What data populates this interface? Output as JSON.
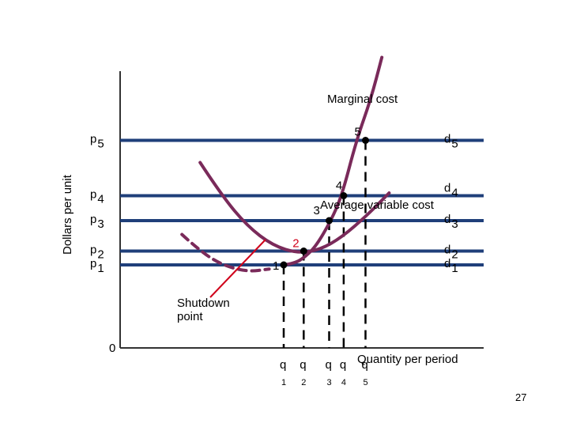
{
  "chart_data": {
    "type": "line",
    "ylabel": "Dollars per unit",
    "xlabel": "Quantity per period",
    "origin_label": "0",
    "xlim": [
      0,
      10
    ],
    "ylim": [
      0,
      10
    ],
    "price_lines": [
      {
        "label": "p",
        "sub": "5",
        "right_label": "d",
        "right_sub": "5",
        "y": 7.5
      },
      {
        "label": "p",
        "sub": "4",
        "right_label": "d",
        "right_sub": "4",
        "y": 5.5
      },
      {
        "label": "p",
        "sub": "3",
        "right_label": "d",
        "right_sub": "3",
        "y": 4.6
      },
      {
        "label": "p",
        "sub": "2",
        "right_label": "d",
        "right_sub": "2",
        "y": 3.5
      },
      {
        "label": "p",
        "sub": "1",
        "right_label": "d",
        "right_sub": "1",
        "y": 3.0
      }
    ],
    "series": [
      {
        "name": "Marginal cost",
        "color": "#7a2a5a",
        "x": [
          4.5,
          4.8,
          5.1,
          5.4,
          5.8,
          6.1,
          6.5,
          6.9,
          7.2
        ],
        "y": [
          3.0,
          3.05,
          3.3,
          3.7,
          4.6,
          5.5,
          7.5,
          9.0,
          10.5
        ]
      },
      {
        "name": "Average variable cost",
        "color": "#7a2a5a",
        "x": [
          2.2,
          2.8,
          3.5,
          4.2,
          4.9,
          5.5,
          6.1,
          6.8,
          7.4
        ],
        "y": [
          6.7,
          5.5,
          4.4,
          3.7,
          3.42,
          3.55,
          4.0,
          4.8,
          5.6
        ]
      },
      {
        "name": "Average variable cost extension",
        "color": "#7a2a5a",
        "dashed": true,
        "x": [
          1.7,
          2.2,
          2.8,
          3.5,
          4.1
        ],
        "y": [
          4.1,
          3.5,
          3.0,
          2.75,
          2.85
        ]
      }
    ],
    "points": [
      {
        "label": "1",
        "x": 4.5,
        "y": 3.0,
        "q_label": "q",
        "q_sub": "1"
      },
      {
        "label": "2",
        "x": 5.05,
        "y": 3.5,
        "q_label": "q",
        "q_sub": "2"
      },
      {
        "label": "3",
        "x": 5.75,
        "y": 4.6,
        "q_label": "q",
        "q_sub": "3"
      },
      {
        "label": "4",
        "x": 6.15,
        "y": 5.5,
        "q_label": "q",
        "q_sub": "4"
      },
      {
        "label": "5",
        "x": 6.75,
        "y": 7.5,
        "q_label": "q",
        "q_sub": "5"
      }
    ],
    "annotations": {
      "mc_label": "Marginal cost",
      "avc_label": "Average variable cost",
      "shutdown_label_line1": "Shutdown",
      "shutdown_label_line2": "point"
    },
    "colors": {
      "price_line": "#1f3f7a",
      "curve": "#7a2a5a",
      "shutdown": "#d0021b",
      "axis": "#333333"
    }
  },
  "page_number": "27"
}
